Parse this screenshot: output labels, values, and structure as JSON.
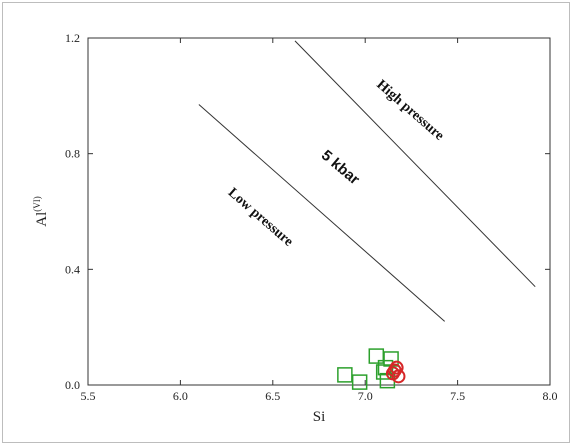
{
  "chart_data": {
    "type": "scatter",
    "xlabel": "Si",
    "ylabel": "Al",
    "ylabel_superscript": "(VI)",
    "xlim": [
      5.5,
      8.0
    ],
    "ylim": [
      0.0,
      1.2
    ],
    "x_ticks": [
      "5.5",
      "6.0",
      "6.5",
      "7.0",
      "7.5",
      "8.0"
    ],
    "y_ticks": [
      "0.0",
      "0.4",
      "0.8",
      "1.2"
    ],
    "grid": false,
    "lines": [
      {
        "x": [
          6.62,
          7.92
        ],
        "y": [
          1.19,
          0.34
        ]
      },
      {
        "x": [
          6.1,
          7.43
        ],
        "y": [
          0.97,
          0.22
        ]
      }
    ],
    "annotations": [
      {
        "text": "High pressure",
        "x": 7.23,
        "y": 0.94,
        "rotation": 41,
        "style": "bold-serif"
      },
      {
        "text": "5 kbar",
        "x": 6.85,
        "y": 0.74,
        "rotation": 40,
        "style": "bold-sans"
      },
      {
        "text": "Low pressure",
        "x": 6.42,
        "y": 0.57,
        "rotation": 41,
        "style": "bold-serif"
      }
    ],
    "series": [
      {
        "marker": "square",
        "color": "#2ca02c",
        "x": [
          6.89,
          6.97,
          7.06,
          7.1,
          7.12,
          7.14,
          7.11
        ],
        "y": [
          0.035,
          0.01,
          0.1,
          0.045,
          0.015,
          0.09,
          0.06
        ]
      },
      {
        "marker": "circle",
        "color": "#d62728",
        "x": [
          7.15,
          7.17,
          7.18,
          7.16
        ],
        "y": [
          0.04,
          0.06,
          0.03,
          0.05
        ]
      }
    ]
  }
}
